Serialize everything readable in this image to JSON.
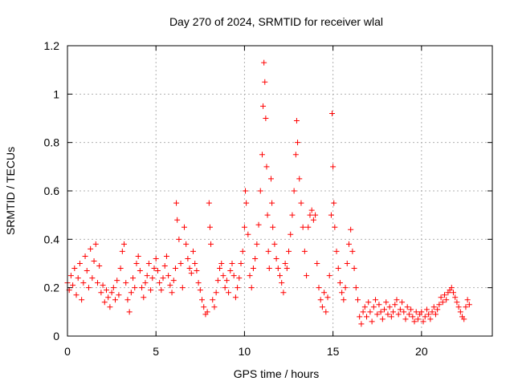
{
  "chart_data": {
    "type": "scatter",
    "title": "Day 270 of 2024, SRMTID for receiver wlal",
    "xlabel": "GPS time / hours",
    "ylabel": "SRMTID / TECUs",
    "xlim": [
      0,
      24
    ],
    "ylim": [
      0,
      1.2
    ],
    "x_ticks": [
      0,
      5,
      10,
      15,
      20
    ],
    "x_tick_labels": [
      "0",
      "5",
      "10",
      "15",
      "20"
    ],
    "y_ticks": [
      0,
      0.2,
      0.4,
      0.6,
      0.8,
      1.0,
      1.2
    ],
    "y_tick_labels": [
      "0",
      "0.2",
      "0.4",
      "0.6",
      "0.8",
      "1",
      "1.2"
    ],
    "grid": true,
    "marker": "plus",
    "series": [
      {
        "name": "SRMTID",
        "color": "#ff0000",
        "points": [
          [
            0.0,
            0.22
          ],
          [
            0.1,
            0.19
          ],
          [
            0.2,
            0.25
          ],
          [
            0.3,
            0.21
          ],
          [
            0.4,
            0.28
          ],
          [
            0.5,
            0.17
          ],
          [
            0.6,
            0.24
          ],
          [
            0.7,
            0.3
          ],
          [
            0.8,
            0.15
          ],
          [
            0.9,
            0.22
          ],
          [
            1.0,
            0.33
          ],
          [
            1.1,
            0.27
          ],
          [
            1.2,
            0.2
          ],
          [
            1.3,
            0.36
          ],
          [
            1.4,
            0.24
          ],
          [
            1.5,
            0.31
          ],
          [
            1.6,
            0.38
          ],
          [
            1.7,
            0.22
          ],
          [
            1.8,
            0.29
          ],
          [
            1.9,
            0.18
          ],
          [
            2.0,
            0.21
          ],
          [
            2.1,
            0.14
          ],
          [
            2.2,
            0.19
          ],
          [
            2.3,
            0.16
          ],
          [
            2.4,
            0.12
          ],
          [
            2.5,
            0.18
          ],
          [
            2.6,
            0.2
          ],
          [
            2.7,
            0.15
          ],
          [
            2.8,
            0.23
          ],
          [
            2.9,
            0.17
          ],
          [
            3.0,
            0.28
          ],
          [
            3.1,
            0.35
          ],
          [
            3.2,
            0.38
          ],
          [
            3.3,
            0.22
          ],
          [
            3.4,
            0.15
          ],
          [
            3.5,
            0.1
          ],
          [
            3.6,
            0.18
          ],
          [
            3.7,
            0.24
          ],
          [
            3.8,
            0.2
          ],
          [
            3.9,
            0.3
          ],
          [
            4.0,
            0.33
          ],
          [
            4.1,
            0.27
          ],
          [
            4.2,
            0.2
          ],
          [
            4.3,
            0.16
          ],
          [
            4.4,
            0.22
          ],
          [
            4.5,
            0.25
          ],
          [
            4.6,
            0.3
          ],
          [
            4.7,
            0.19
          ],
          [
            4.8,
            0.24
          ],
          [
            4.9,
            0.28
          ],
          [
            5.0,
            0.32
          ],
          [
            5.1,
            0.27
          ],
          [
            5.2,
            0.22
          ],
          [
            5.3,
            0.19
          ],
          [
            5.4,
            0.24
          ],
          [
            5.5,
            0.29
          ],
          [
            5.6,
            0.33
          ],
          [
            5.7,
            0.25
          ],
          [
            5.8,
            0.21
          ],
          [
            5.9,
            0.18
          ],
          [
            6.0,
            0.23
          ],
          [
            6.1,
            0.28
          ],
          [
            6.15,
            0.55
          ],
          [
            6.2,
            0.48
          ],
          [
            6.3,
            0.4
          ],
          [
            6.4,
            0.3
          ],
          [
            6.5,
            0.2
          ],
          [
            6.6,
            0.45
          ],
          [
            6.7,
            0.38
          ],
          [
            6.8,
            0.32
          ],
          [
            6.9,
            0.28
          ],
          [
            7.0,
            0.26
          ],
          [
            7.1,
            0.35
          ],
          [
            7.2,
            0.3
          ],
          [
            7.3,
            0.27
          ],
          [
            7.4,
            0.22
          ],
          [
            7.5,
            0.19
          ],
          [
            7.6,
            0.15
          ],
          [
            7.7,
            0.12
          ],
          [
            7.8,
            0.09
          ],
          [
            7.9,
            0.1
          ],
          [
            8.0,
            0.55
          ],
          [
            8.05,
            0.45
          ],
          [
            8.1,
            0.38
          ],
          [
            8.2,
            0.15
          ],
          [
            8.3,
            0.12
          ],
          [
            8.4,
            0.18
          ],
          [
            8.5,
            0.23
          ],
          [
            8.6,
            0.28
          ],
          [
            8.7,
            0.3
          ],
          [
            8.8,
            0.25
          ],
          [
            8.9,
            0.2
          ],
          [
            9.0,
            0.23
          ],
          [
            9.1,
            0.18
          ],
          [
            9.2,
            0.27
          ],
          [
            9.3,
            0.3
          ],
          [
            9.4,
            0.25
          ],
          [
            9.5,
            0.16
          ],
          [
            9.6,
            0.2
          ],
          [
            9.7,
            0.24
          ],
          [
            9.8,
            0.3
          ],
          [
            9.9,
            0.35
          ],
          [
            10.0,
            0.45
          ],
          [
            10.05,
            0.6
          ],
          [
            10.1,
            0.55
          ],
          [
            10.2,
            0.42
          ],
          [
            10.3,
            0.25
          ],
          [
            10.4,
            0.2
          ],
          [
            10.5,
            0.28
          ],
          [
            10.6,
            0.32
          ],
          [
            10.7,
            0.38
          ],
          [
            10.8,
            0.46
          ],
          [
            10.9,
            0.6
          ],
          [
            11.0,
            0.75
          ],
          [
            11.05,
            0.95
          ],
          [
            11.1,
            1.13
          ],
          [
            11.15,
            1.05
          ],
          [
            11.2,
            0.9
          ],
          [
            11.25,
            0.7
          ],
          [
            11.3,
            0.5
          ],
          [
            11.35,
            0.35
          ],
          [
            11.4,
            0.28
          ],
          [
            11.5,
            0.65
          ],
          [
            11.55,
            0.55
          ],
          [
            11.6,
            0.45
          ],
          [
            11.7,
            0.38
          ],
          [
            11.8,
            0.32
          ],
          [
            11.9,
            0.28
          ],
          [
            12.0,
            0.25
          ],
          [
            12.1,
            0.22
          ],
          [
            12.2,
            0.18
          ],
          [
            12.3,
            0.3
          ],
          [
            12.4,
            0.28
          ],
          [
            12.5,
            0.35
          ],
          [
            12.6,
            0.42
          ],
          [
            12.7,
            0.5
          ],
          [
            12.8,
            0.6
          ],
          [
            12.9,
            0.75
          ],
          [
            12.95,
            0.89
          ],
          [
            13.0,
            0.8
          ],
          [
            13.1,
            0.65
          ],
          [
            13.2,
            0.55
          ],
          [
            13.3,
            0.45
          ],
          [
            13.4,
            0.35
          ],
          [
            13.5,
            0.25
          ],
          [
            13.6,
            0.45
          ],
          [
            13.7,
            0.5
          ],
          [
            13.8,
            0.52
          ],
          [
            13.9,
            0.48
          ],
          [
            14.0,
            0.5
          ],
          [
            14.1,
            0.3
          ],
          [
            14.2,
            0.2
          ],
          [
            14.3,
            0.15
          ],
          [
            14.4,
            0.12
          ],
          [
            14.5,
            0.18
          ],
          [
            14.6,
            0.1
          ],
          [
            14.7,
            0.16
          ],
          [
            14.8,
            0.25
          ],
          [
            14.9,
            0.5
          ],
          [
            14.95,
            0.92
          ],
          [
            15.0,
            0.7
          ],
          [
            15.05,
            0.55
          ],
          [
            15.1,
            0.45
          ],
          [
            15.2,
            0.35
          ],
          [
            15.3,
            0.28
          ],
          [
            15.4,
            0.22
          ],
          [
            15.5,
            0.18
          ],
          [
            15.6,
            0.15
          ],
          [
            15.7,
            0.2
          ],
          [
            15.8,
            0.3
          ],
          [
            15.9,
            0.38
          ],
          [
            16.0,
            0.44
          ],
          [
            16.1,
            0.35
          ],
          [
            16.2,
            0.28
          ],
          [
            16.3,
            0.2
          ],
          [
            16.4,
            0.15
          ],
          [
            16.5,
            0.08
          ],
          [
            16.6,
            0.05
          ],
          [
            16.7,
            0.1
          ],
          [
            16.8,
            0.12
          ],
          [
            16.9,
            0.08
          ],
          [
            17.0,
            0.14
          ],
          [
            17.1,
            0.1
          ],
          [
            17.2,
            0.06
          ],
          [
            17.3,
            0.12
          ],
          [
            17.4,
            0.15
          ],
          [
            17.5,
            0.09
          ],
          [
            17.6,
            0.13
          ],
          [
            17.7,
            0.1
          ],
          [
            17.8,
            0.07
          ],
          [
            17.9,
            0.11
          ],
          [
            18.0,
            0.14
          ],
          [
            18.1,
            0.09
          ],
          [
            18.2,
            0.12
          ],
          [
            18.3,
            0.08
          ],
          [
            18.4,
            0.1
          ],
          [
            18.5,
            0.13
          ],
          [
            18.6,
            0.15
          ],
          [
            18.7,
            0.09
          ],
          [
            18.8,
            0.11
          ],
          [
            18.9,
            0.14
          ],
          [
            19.0,
            0.1
          ],
          [
            19.1,
            0.07
          ],
          [
            19.2,
            0.12
          ],
          [
            19.3,
            0.09
          ],
          [
            19.4,
            0.11
          ],
          [
            19.5,
            0.08
          ],
          [
            19.6,
            0.06
          ],
          [
            19.7,
            0.1
          ],
          [
            19.8,
            0.07
          ],
          [
            19.9,
            0.09
          ],
          [
            20.0,
            0.1
          ],
          [
            20.1,
            0.06
          ],
          [
            20.2,
            0.08
          ],
          [
            20.3,
            0.11
          ],
          [
            20.4,
            0.09
          ],
          [
            20.5,
            0.07
          ],
          [
            20.6,
            0.1
          ],
          [
            20.7,
            0.12
          ],
          [
            20.8,
            0.09
          ],
          [
            20.9,
            0.11
          ],
          [
            21.0,
            0.13
          ],
          [
            21.1,
            0.16
          ],
          [
            21.2,
            0.14
          ],
          [
            21.3,
            0.17
          ],
          [
            21.4,
            0.15
          ],
          [
            21.5,
            0.18
          ],
          [
            21.6,
            0.19
          ],
          [
            21.7,
            0.2
          ],
          [
            21.8,
            0.18
          ],
          [
            21.9,
            0.16
          ],
          [
            22.0,
            0.14
          ],
          [
            22.1,
            0.12
          ],
          [
            22.2,
            0.1
          ],
          [
            22.3,
            0.08
          ],
          [
            22.4,
            0.07
          ],
          [
            22.5,
            0.12
          ],
          [
            22.6,
            0.15
          ],
          [
            22.7,
            0.13
          ]
        ]
      }
    ]
  }
}
